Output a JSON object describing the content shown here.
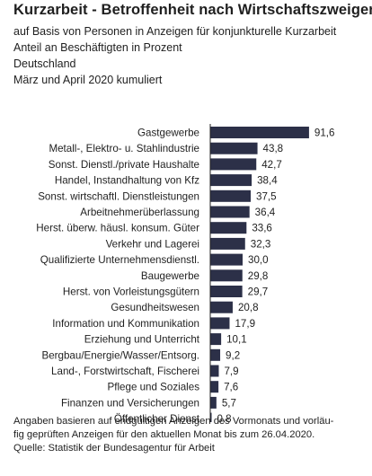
{
  "header": {
    "title": "Kurzarbeit - Betroffenheit nach Wirtschaftszweigen",
    "subtitle_lines": [
      "auf Basis von Personen in Anzeigen für konjunkturelle Kurzarbeit",
      "Anteil an Beschäftigten in Prozent",
      "Deutschland",
      "März und April 2020 kumuliert"
    ]
  },
  "footer": {
    "note_lines": [
      "Angaben basieren auf endgültigen Anzeigen des Vormonats und vorläu-",
      "fig geprüften Anzeigen für den aktuellen Monat bis zum 26.04.2020."
    ],
    "source": "Quelle: Statistik der Bundesagentur für Arbeit"
  },
  "colors": {
    "bar": "#2c3048",
    "axis": "#222222"
  },
  "chart_data": {
    "type": "bar",
    "orientation": "horizontal",
    "categories": [
      "Gastgewerbe",
      "Metall-, Elektro- u. Stahlindustrie",
      "Sonst. Dienstl./private Haushalte",
      "Handel, Instandhaltung von Kfz",
      "Sonst. wirtschaftl. Dienstleistungen",
      "Arbeitnehmerüberlassung",
      "Herst. überw. häusl. konsum. Güter",
      "Verkehr und Lagerei",
      "Qualifizierte Unternehmensdienstl.",
      "Baugewerbe",
      "Herst. von Vorleistungsgütern",
      "Gesundheitswesen",
      "Information und Kommunikation",
      "Erziehung und Unterricht",
      "Bergbau/Energie/Wasser/Entsorg.",
      "Land-, Forstwirtschaft, Fischerei",
      "Pflege und Soziales",
      "Finanzen und Versicherungen",
      "Öffentlicher Dienst"
    ],
    "values": [
      91.6,
      43.8,
      42.7,
      38.4,
      37.5,
      36.4,
      33.6,
      32.3,
      30.0,
      29.8,
      29.7,
      20.8,
      17.9,
      10.1,
      9.2,
      7.9,
      7.6,
      5.7,
      0.8
    ],
    "value_labels": [
      "91,6",
      "43,8",
      "42,7",
      "38,4",
      "37,5",
      "36,4",
      "33,6",
      "32,3",
      "30,0",
      "29,8",
      "29,7",
      "20,8",
      "17,9",
      "10,1",
      "9,2",
      "7,9",
      "7,6",
      "5,7",
      "0,8"
    ],
    "xlim": [
      0,
      100
    ],
    "grid": false,
    "legend": "none"
  }
}
